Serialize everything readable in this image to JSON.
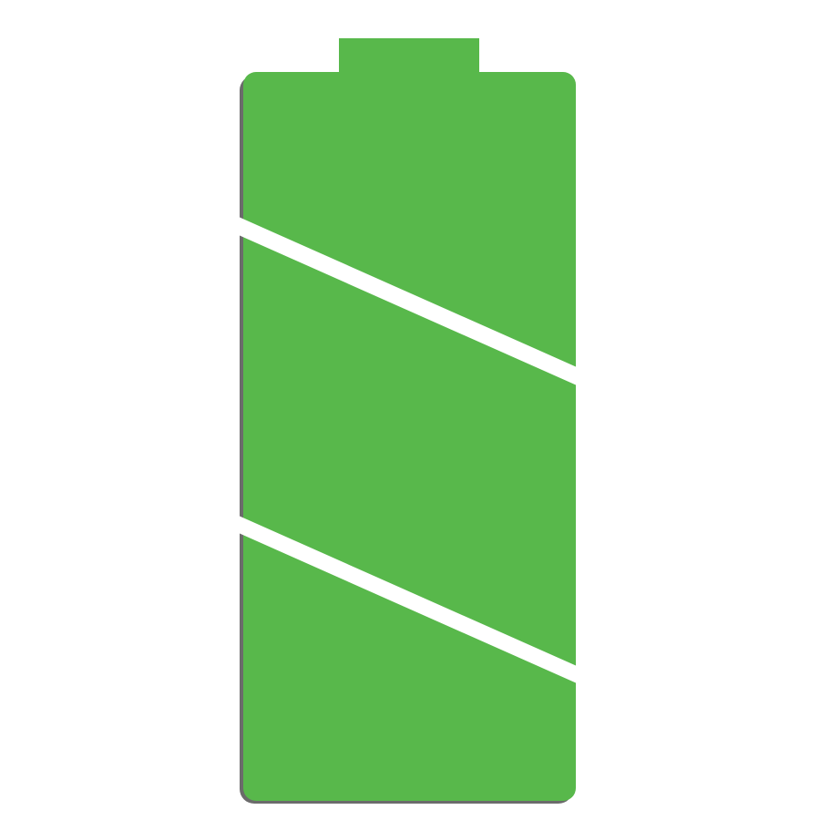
{
  "battery": {
    "icon_name": "battery-full-icon",
    "charge_level": 1.0,
    "segments_filled": 3,
    "segments_total": 3
  },
  "colors": {
    "fill": "#58b84b",
    "shadow": "#6b6b6b",
    "background": "#ffffff",
    "divider": "#ffffff"
  }
}
